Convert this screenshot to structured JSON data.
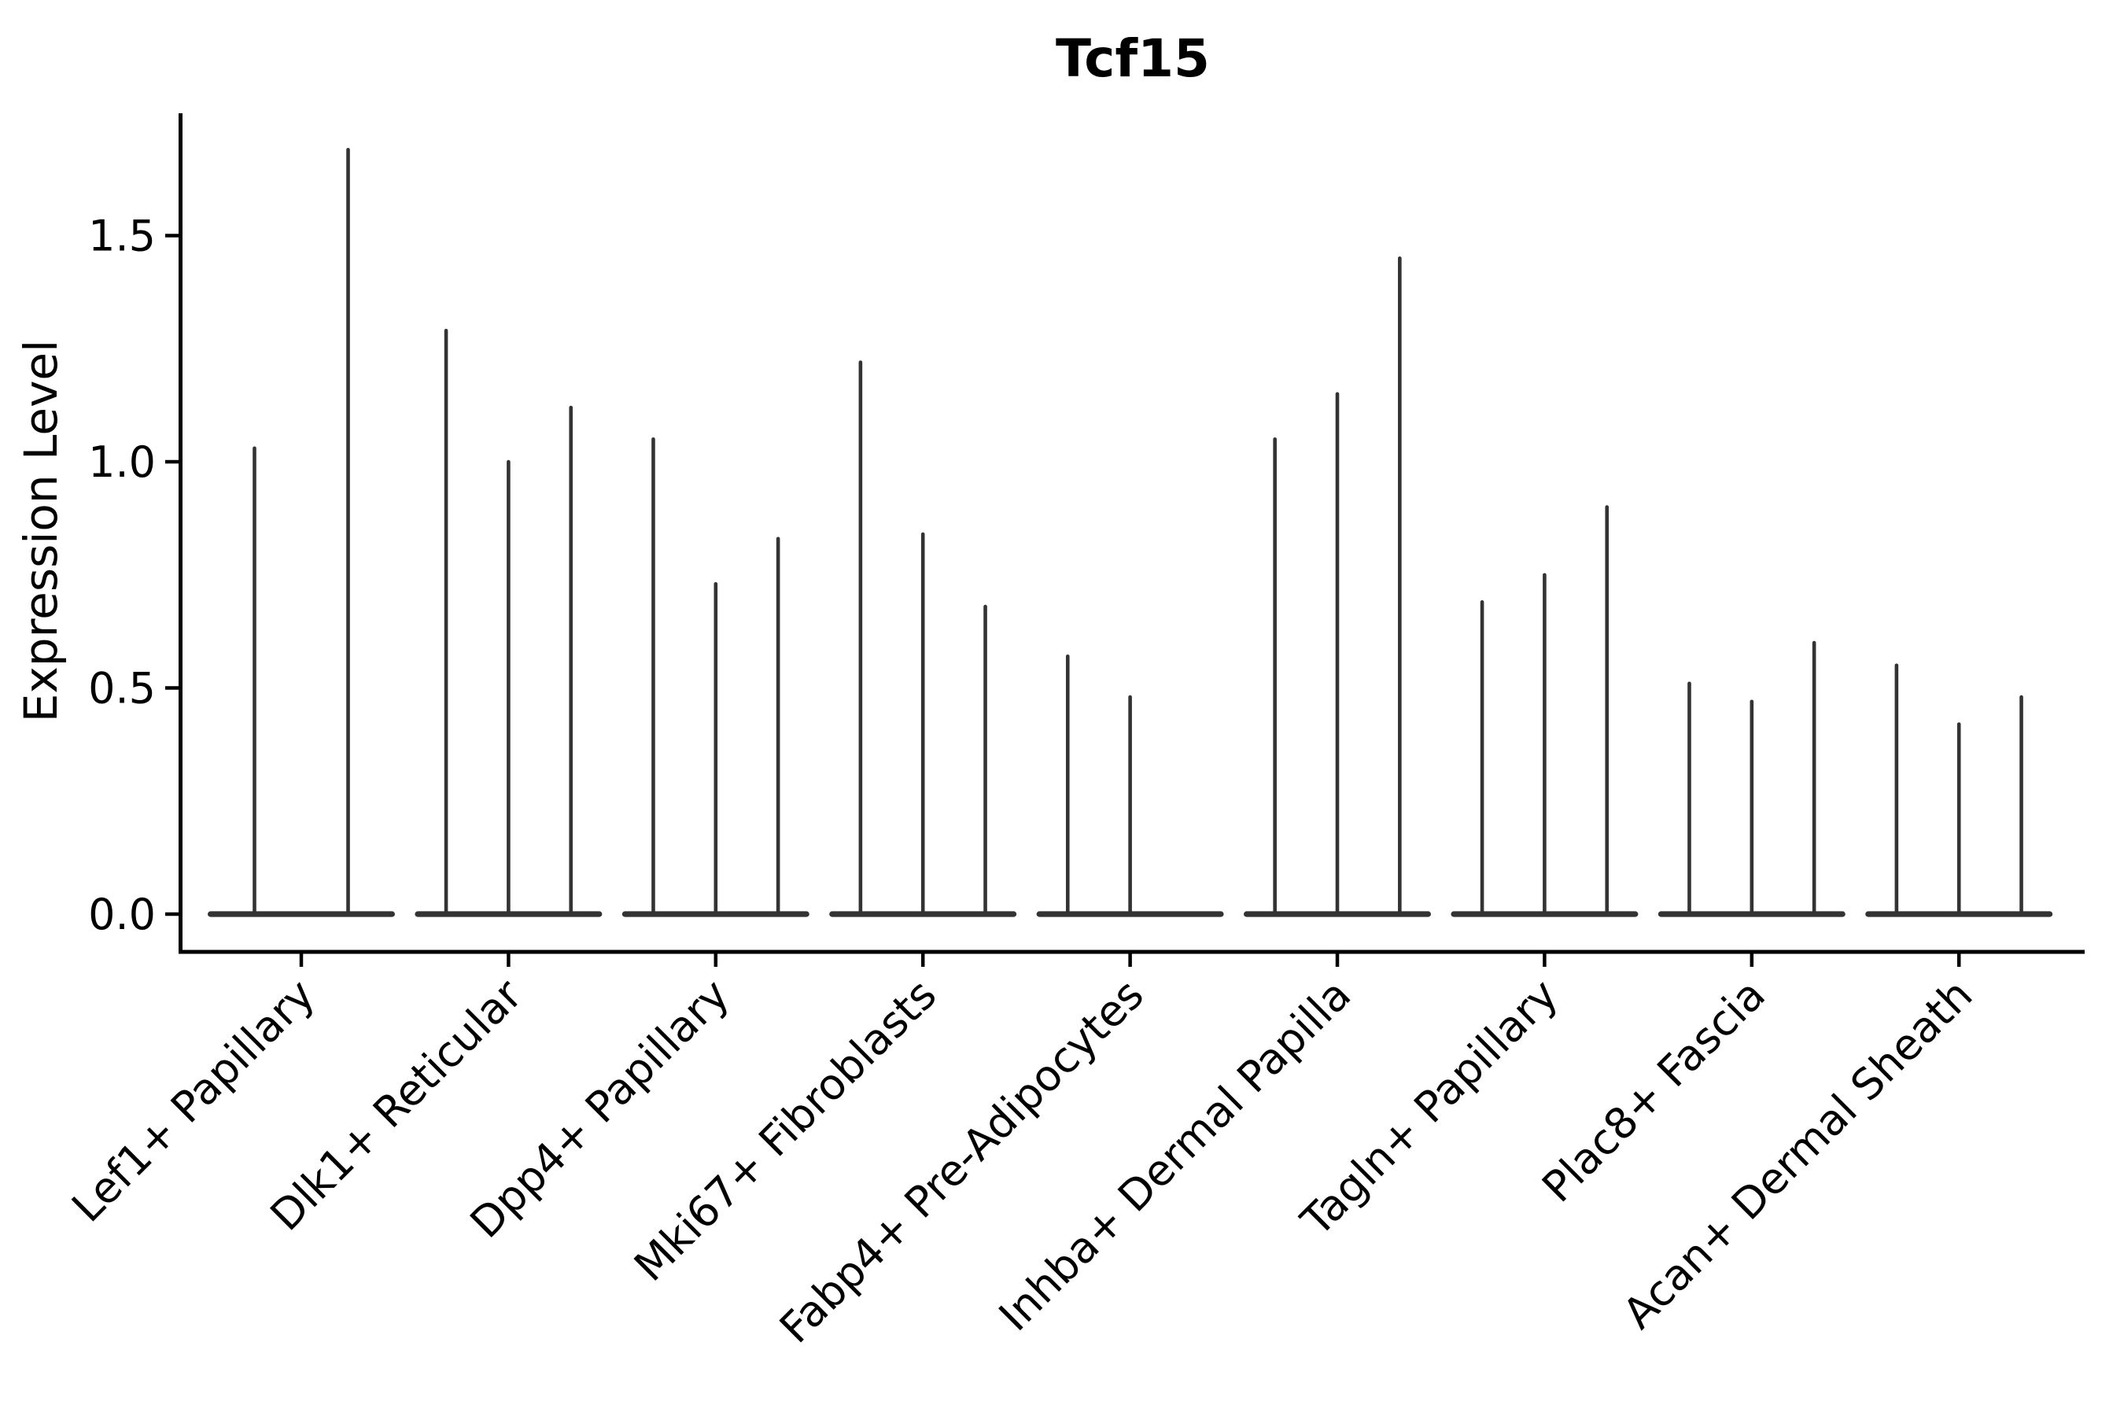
{
  "figure": {
    "title": "Tcf15",
    "y_axis": {
      "label": "Expression Level",
      "tick_labels": [
        "0.0",
        "0.5",
        "1.0",
        "1.5"
      ]
    },
    "x_axis": {
      "categories": [
        "Lef1+ Papillary",
        "Dlk1+ Reticular",
        "Dpp4+ Papillary",
        "Mki67+ Fibroblasts",
        "Fabp4+ Pre-Adipocytes",
        "Inhba+ Dermal Papilla",
        "Tagln+ Papillary",
        "Plac8+ Fascia",
        "Acan+ Dermal Sheath"
      ]
    }
  },
  "chart_data": {
    "type": "violin",
    "title": "Tcf15",
    "xlabel": "",
    "ylabel": "Expression Level",
    "ylim": [
      -0.09,
      1.77
    ],
    "yticks": [
      0.0,
      0.5,
      1.0,
      1.5
    ],
    "grid": false,
    "legend": null,
    "violin_color": "#333333",
    "axis_color": "#000000",
    "categories": [
      "Lef1+ Papillary",
      "Dlk1+ Reticular",
      "Dpp4+ Papillary",
      "Mki67+ Fibroblasts",
      "Fabp4+ Pre-Adipocytes",
      "Inhba+ Dermal Papilla",
      "Tagln+ Papillary",
      "Plac8+ Fascia",
      "Acan+ Dermal Sheath"
    ],
    "groups": [
      {
        "category": "Lef1+ Papillary",
        "violin_peaks": [
          1.03,
          1.69
        ]
      },
      {
        "category": "Dlk1+ Reticular",
        "violin_peaks": [
          1.29,
          1.0,
          1.12
        ]
      },
      {
        "category": "Dpp4+ Papillary",
        "violin_peaks": [
          1.05,
          0.73,
          0.83
        ]
      },
      {
        "category": "Mki67+ Fibroblasts",
        "violin_peaks": [
          1.22,
          0.84,
          0.68
        ]
      },
      {
        "category": "Fabp4+ Pre-Adipocytes",
        "violin_peaks": [
          0.57,
          0.48,
          0.0
        ]
      },
      {
        "category": "Inhba+ Dermal Papilla",
        "violin_peaks": [
          1.05,
          1.15,
          1.45
        ]
      },
      {
        "category": "Tagln+ Papillary",
        "violin_peaks": [
          0.69,
          0.75,
          0.9
        ]
      },
      {
        "category": "Plac8+ Fascia",
        "violin_peaks": [
          0.51,
          0.47,
          0.6
        ]
      },
      {
        "category": "Acan+ Dermal Sheath",
        "violin_peaks": [
          0.55,
          0.42,
          0.48
        ]
      }
    ],
    "shape_note": "Each violin is a flat near-zero density lens at y=0 with a thin vertical spike rising to its peak value"
  }
}
